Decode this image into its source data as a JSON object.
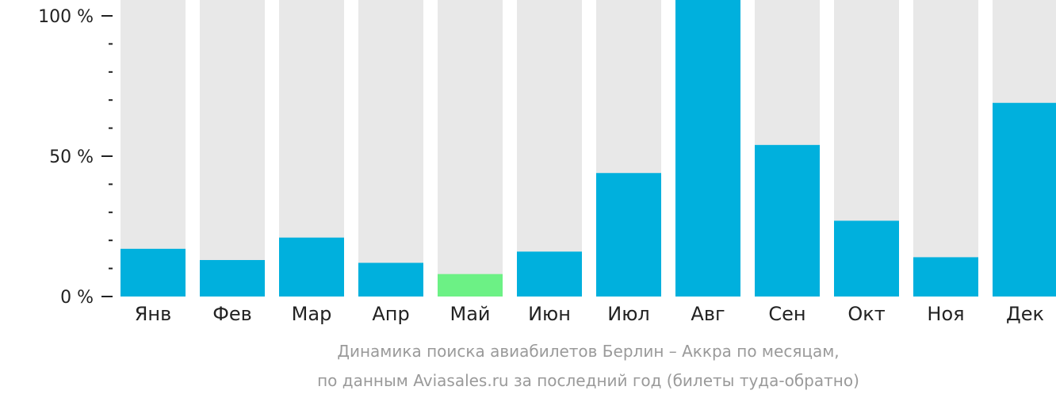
{
  "chart_data": {
    "type": "bar",
    "categories": [
      "Янв",
      "Фев",
      "Мар",
      "Апр",
      "Май",
      "Июн",
      "Июл",
      "Авг",
      "Сен",
      "Окт",
      "Ноя",
      "Дек"
    ],
    "values": [
      17,
      13,
      21,
      12,
      8,
      16,
      44,
      106,
      54,
      27,
      14,
      69
    ],
    "highlight_index": 4,
    "ylim": [
      0,
      100
    ],
    "y_ticks": [
      {
        "value": 0,
        "label": "0 %"
      },
      {
        "value": 50,
        "label": "50 %"
      },
      {
        "value": 100,
        "label": "100 %"
      }
    ],
    "minor_tick_step": 10,
    "colors": {
      "bar": "#00b0dd",
      "highlight": "#6cf185",
      "background_bar": "#e8e8e8",
      "axis": "#222222",
      "caption": "#9a9a9a"
    },
    "caption": [
      "Динамика поиска авиабилетов Берлин – Аккра по месяцам,",
      "по данным Aviasales.ru за последний год (билеты туда-обратно)"
    ]
  }
}
